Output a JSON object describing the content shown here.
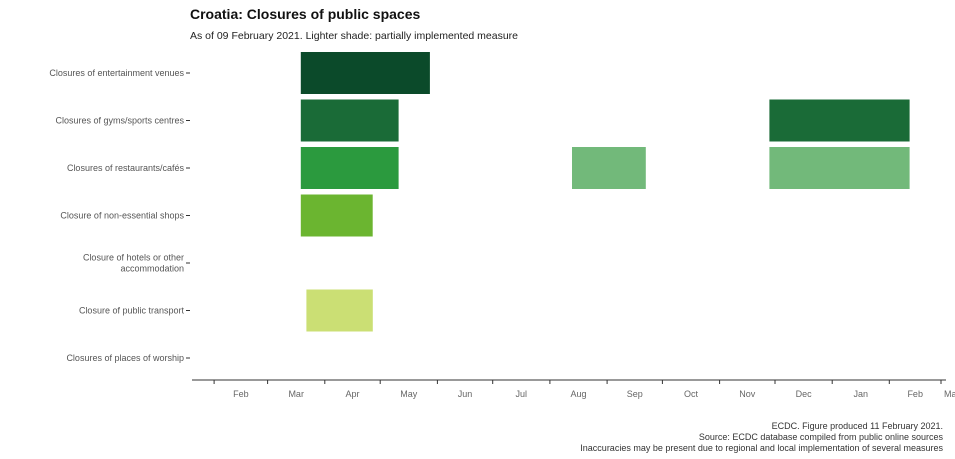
{
  "chart_data": {
    "type": "bar",
    "title": "Croatia: Closures of public spaces",
    "subtitle": "As of 09 February 2021. Lighter shade: partially implemented measure",
    "categories": [
      [
        "Closures of entertainment venues"
      ],
      [
        "Closures of gyms/sports centres"
      ],
      [
        "Closures of restaurants/cafés"
      ],
      [
        "Closure of non-essential shops"
      ],
      [
        "Closure of hotels or other",
        "accommodation"
      ],
      [
        "Closure of public transport"
      ],
      [
        "Closures of places of worship"
      ]
    ],
    "x_ticks": [
      "Feb",
      "Mar",
      "Apr",
      "May",
      "Jun",
      "Jul",
      "Aug",
      "Sep",
      "Oct",
      "Nov",
      "Dec",
      "Jan",
      "Feb",
      "Ma"
    ],
    "xlim": [
      "2020-01-20",
      "2021-03-01"
    ],
    "segments": [
      {
        "row": 0,
        "start": "2020-03-19",
        "end": "2020-05-28",
        "partial": false,
        "color": "#0b4a2a"
      },
      {
        "row": 1,
        "start": "2020-03-19",
        "end": "2020-05-11",
        "partial": false,
        "color": "#1a6b37"
      },
      {
        "row": 1,
        "start": "2020-11-28",
        "end": "2021-02-12",
        "partial": false,
        "color": "#1a6b37"
      },
      {
        "row": 2,
        "start": "2020-03-19",
        "end": "2020-05-11",
        "partial": false,
        "color": "#2b9a3e"
      },
      {
        "row": 2,
        "start": "2020-08-13",
        "end": "2020-09-22",
        "partial": true,
        "color": "#72b97a"
      },
      {
        "row": 2,
        "start": "2020-11-28",
        "end": "2021-02-12",
        "partial": true,
        "color": "#72b97a"
      },
      {
        "row": 3,
        "start": "2020-03-19",
        "end": "2020-04-27",
        "partial": false,
        "color": "#6bb530"
      },
      {
        "row": 5,
        "start": "2020-03-22",
        "end": "2020-04-27",
        "partial": false,
        "color": "#cbdf74"
      }
    ]
  },
  "caption": [
    "ECDC. Figure produced 11 February 2021.",
    "Source: ECDC database compiled from public online sources",
    "Inaccuracies may be present due to regional and local implementation of several measures"
  ]
}
